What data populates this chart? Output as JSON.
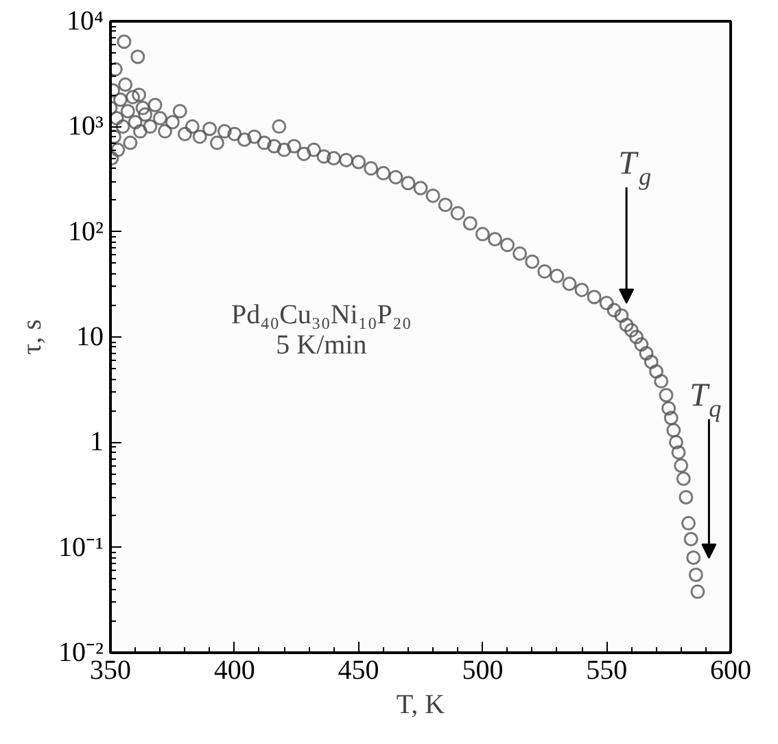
{
  "chart_data": {
    "type": "scatter",
    "xlabel": "T, K",
    "ylabel": "τ, s",
    "xlim": [
      350,
      600
    ],
    "xticks": [
      350,
      400,
      450,
      500,
      550,
      600
    ],
    "ylim": [
      0.01,
      10000
    ],
    "log": "y",
    "yticks": [
      {
        "value": 0.01,
        "label": "10⁻²"
      },
      {
        "value": 0.1,
        "label": "10⁻¹"
      },
      1,
      10,
      {
        "value": 100,
        "label": "10²"
      },
      {
        "value": 1000,
        "label": "10³"
      },
      {
        "value": 10000,
        "label": "10⁴"
      }
    ],
    "grid": false,
    "marker": "circle",
    "series": [
      {
        "color": "#555555",
        "x": [
          350,
          350.5,
          351,
          351.5,
          352,
          352.5,
          353,
          354,
          355,
          355.5,
          356,
          357,
          358,
          359,
          360,
          361,
          361.5,
          362,
          363,
          364,
          366,
          368,
          370,
          372,
          375,
          378,
          380,
          383,
          386,
          390,
          393,
          396,
          400,
          404,
          408,
          412,
          416,
          418,
          420,
          424,
          428,
          432,
          436,
          440,
          445,
          450,
          455,
          460,
          465,
          470,
          475,
          480,
          485,
          490,
          495,
          500,
          505,
          510,
          515,
          520,
          525,
          530,
          535,
          540,
          545,
          550,
          553,
          556,
          558,
          560,
          562,
          564,
          566,
          568,
          570,
          572,
          574,
          575,
          576,
          577,
          578,
          579,
          580,
          581,
          582,
          583,
          584,
          585,
          586,
          586.7
        ],
        "values": [
          1500,
          500,
          2200,
          800,
          3500,
          1200,
          600,
          1800,
          1000,
          6400,
          2500,
          1400,
          700,
          1900,
          1100,
          4600,
          2000,
          900,
          1500,
          1300,
          1000,
          1600,
          1200,
          900,
          1100,
          1400,
          850,
          1000,
          800,
          950,
          700,
          900,
          850,
          750,
          800,
          700,
          650,
          1000,
          600,
          650,
          550,
          600,
          520,
          500,
          480,
          460,
          400,
          360,
          330,
          290,
          260,
          220,
          180,
          150,
          120,
          95,
          85,
          75,
          62,
          52,
          42,
          38,
          32,
          28,
          24,
          21,
          18,
          16,
          13,
          11.6,
          10,
          8.5,
          7,
          5.8,
          4.7,
          3.8,
          2.8,
          2.1,
          1.7,
          1.3,
          1,
          0.8,
          0.6,
          0.45,
          0.3,
          0.17,
          0.12,
          0.08,
          0.055,
          0.038
        ]
      }
    ],
    "annotations": [
      {
        "text": "T$_{g}$",
        "x": 558,
        "y": 21
      },
      "T$_{q}$",
      "Pd₄₀Cu₃₀Ni₁₀P₂₀",
      "5 K/min"
    ]
  }
}
